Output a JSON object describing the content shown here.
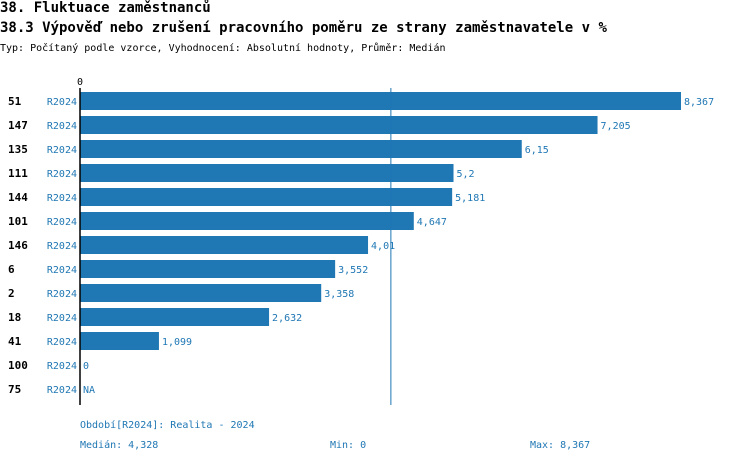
{
  "header": {
    "title": "38. Fluktuace zaměstnanců",
    "subtitle": "38.3 Výpověď nebo zrušení pracovního poměru ze strany zaměstnavatele v %",
    "info": "Typ: Počítaný podle vzorce, Vyhodnocení: Absolutní hodnoty, Průměr: Medián"
  },
  "chart_data": {
    "type": "bar",
    "orientation": "horizontal",
    "x_tick_labels": [
      "0"
    ],
    "xlim": [
      0,
      8.367
    ],
    "categories": [
      "51",
      "147",
      "135",
      "111",
      "144",
      "101",
      "146",
      "6",
      "2",
      "18",
      "41",
      "100",
      "75"
    ],
    "series_label": "R2024",
    "values": [
      8.367,
      7.205,
      6.15,
      5.2,
      5.181,
      4.647,
      4.01,
      3.552,
      3.358,
      2.632,
      1.099,
      0,
      null
    ],
    "value_labels": [
      "8,367",
      "7,205",
      "6,15",
      "5,2",
      "5,181",
      "4,647",
      "4,01",
      "3,552",
      "3,358",
      "2,632",
      "1,099",
      "0",
      "NA"
    ],
    "median": 4.328,
    "bar_color": "#1f77b4",
    "grid": false
  },
  "footer": {
    "period": "Období[R2024]: Realita - 2024",
    "median": "Medián: 4,328",
    "min": "Min: 0",
    "max": "Max: 8,367"
  }
}
